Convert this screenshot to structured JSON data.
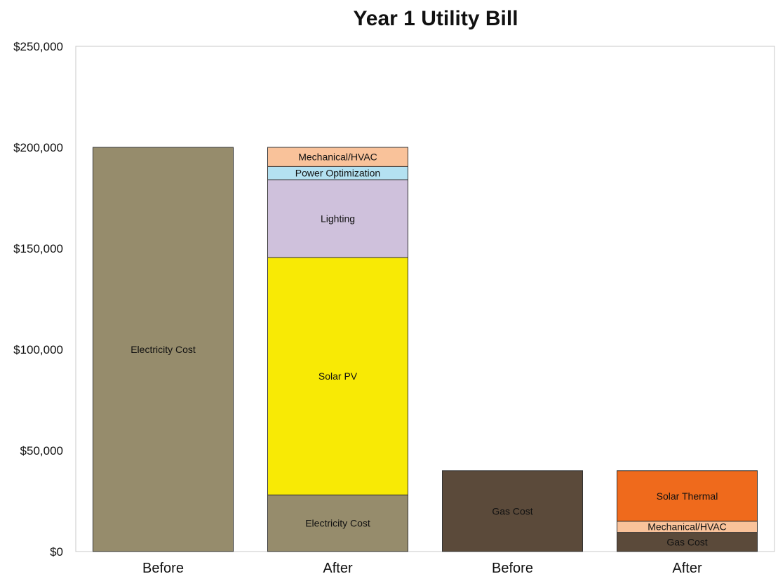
{
  "chart_data": {
    "type": "bar",
    "stacked": true,
    "title": "Year 1 Utility Bill",
    "xlabel": "",
    "ylabel": "",
    "ylim": [
      0,
      250000
    ],
    "yticks": [
      "$0",
      "$50,000",
      "$100,000",
      "$150,000",
      "$200,000",
      "$250,000"
    ],
    "ytick_values": [
      0,
      50000,
      100000,
      150000,
      200000,
      250000
    ],
    "grid": false,
    "legend": "none",
    "categories": [
      "Before",
      "After",
      "Before",
      "After"
    ],
    "bars": [
      {
        "category": "Before",
        "segments": [
          {
            "label": "Electricity Cost",
            "value": 200000,
            "color": "#968c6c"
          }
        ]
      },
      {
        "category": "After",
        "segments": [
          {
            "label": "Electricity Cost",
            "value": 28000,
            "color": "#968c6c"
          },
          {
            "label": "Solar PV",
            "value": 117500,
            "color": "#f8ea05"
          },
          {
            "label": "Lighting",
            "value": 38500,
            "color": "#cfc1dc"
          },
          {
            "label": "Power Optimization",
            "value": 6500,
            "color": "#b4e1f1"
          },
          {
            "label": "Mechanical/HVAC",
            "value": 9500,
            "color": "#f9c29a"
          }
        ]
      },
      {
        "category": "Before",
        "segments": [
          {
            "label": "Gas Cost",
            "value": 40000,
            "color": "#5b4a3a"
          }
        ]
      },
      {
        "category": "After",
        "segments": [
          {
            "label": "Gas Cost",
            "value": 9500,
            "color": "#5b4a3a"
          },
          {
            "label": "Mechanical/HVAC",
            "value": 5500,
            "color": "#f9c29a"
          },
          {
            "label": "Solar Thermal",
            "value": 25000,
            "color": "#ef6a1c"
          }
        ]
      }
    ]
  }
}
